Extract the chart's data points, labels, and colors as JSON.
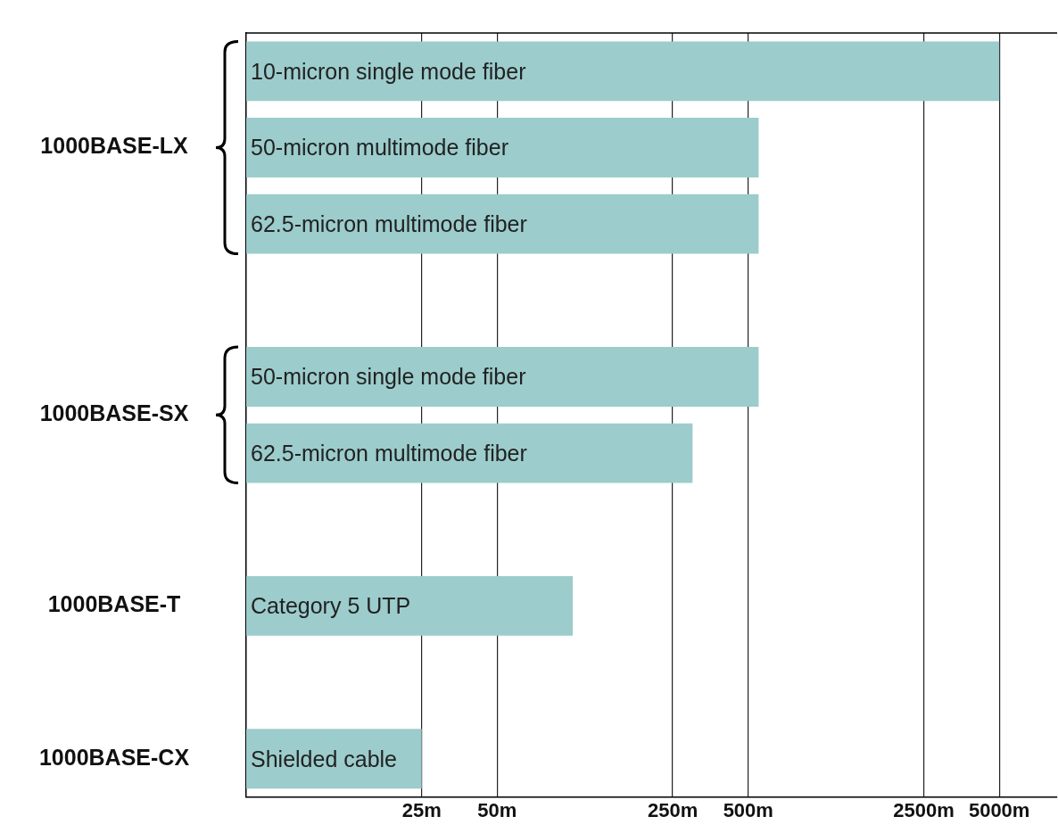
{
  "chart_data": {
    "type": "bar",
    "orientation": "horizontal",
    "log": "x",
    "categories": [
      "10-micron single mode fiber",
      "50-micron multimode fiber",
      "62.5-micron multimode fiber",
      null,
      "50-micron single mode fiber",
      "62.5-micron multimode fiber",
      null,
      "Category 5 UTP",
      null,
      "Shielded cable"
    ],
    "values": [
      5000,
      550,
      550,
      null,
      550,
      300,
      null,
      100,
      null,
      25
    ],
    "color": "#9ccccc",
    "xlim": [
      5,
      8500
    ],
    "xticks": [
      {
        "value": 25,
        "label": "25m"
      },
      {
        "value": 50,
        "label": "50m"
      },
      {
        "value": 250,
        "label": "250m"
      },
      {
        "value": 500,
        "label": "500m"
      },
      {
        "value": 2500,
        "label": "2500m"
      },
      {
        "value": 5000,
        "label": "5000m"
      }
    ],
    "grid": "x",
    "tick_labels": "x",
    "annotations": [
      "1000BASE-LX",
      "1000BASE-SX",
      "1000BASE-T",
      "1000BASE-CX"
    ]
  }
}
